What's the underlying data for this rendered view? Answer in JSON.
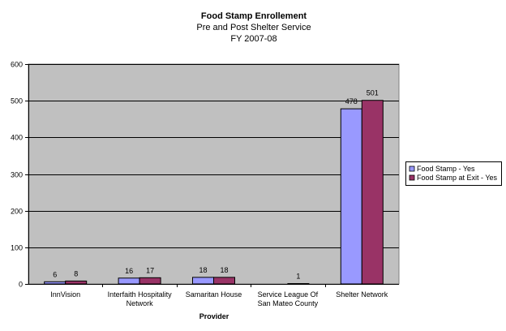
{
  "chart_data": {
    "type": "bar",
    "title": "Food Stamp Enrollement",
    "subtitle": [
      "Pre and Post Shelter Service",
      "FY 2007-08"
    ],
    "xlabel": "Provider",
    "ylabel": "",
    "categories": [
      [
        "InnVision"
      ],
      [
        "Interfaith Hospitality",
        "Network"
      ],
      [
        "Samaritan House"
      ],
      [
        "Service League Of",
        "San Mateo County"
      ],
      [
        "Shelter Network"
      ]
    ],
    "series": [
      {
        "name": "Food Stamp - Yes",
        "values": [
          6,
          16,
          18,
          null,
          478
        ],
        "labels": [
          "6",
          "16",
          "18",
          "",
          "478"
        ]
      },
      {
        "name": "Food Stamp at Exit - Yes",
        "values": [
          8,
          17,
          18,
          1,
          501
        ],
        "labels": [
          "8",
          "17",
          "18",
          "1",
          "501"
        ]
      }
    ],
    "ylim": [
      0,
      600
    ],
    "yticks": [
      0,
      100,
      200,
      300,
      400,
      500,
      600
    ],
    "grid": true,
    "legend_position": "right",
    "colors": {
      "plot_bg": "#c0c0c0",
      "series": [
        "#9999ff",
        "#993366"
      ],
      "grid": "#000000"
    }
  }
}
